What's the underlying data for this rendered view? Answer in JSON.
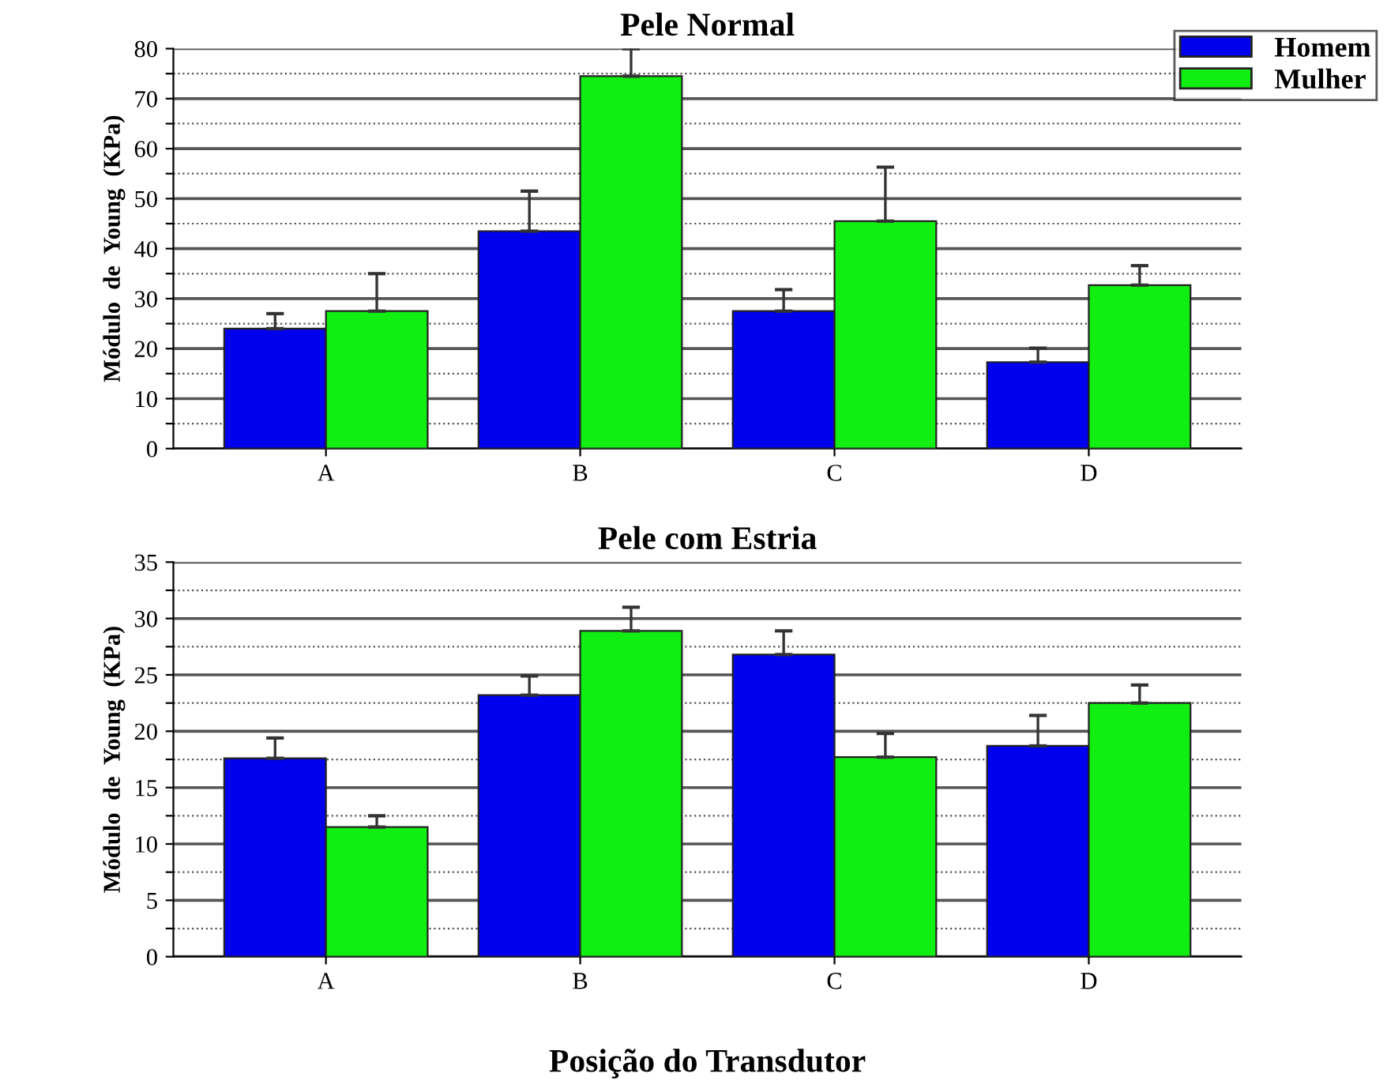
{
  "chart_data": [
    {
      "type": "bar",
      "title": "Pele Normal",
      "ylabel": "Módulo  de  Young  (KPa)",
      "categories": [
        "A",
        "B",
        "C",
        "D"
      ],
      "series": [
        {
          "name": "Homem",
          "color": "#0000ee",
          "values": [
            24,
            43.5,
            27.5,
            17.3
          ],
          "errors": [
            [
              24,
              27
            ],
            [
              43.5,
              51.5
            ],
            [
              27.5,
              31.8
            ],
            [
              17.3,
              20.1
            ]
          ]
        },
        {
          "name": "Mulher",
          "color": "#11ee11",
          "values": [
            27.5,
            74.5,
            45.5,
            32.7
          ],
          "errors": [
            [
              27.5,
              35
            ],
            [
              74.5,
              80
            ],
            [
              45.5,
              56.3
            ],
            [
              32.7,
              36.6
            ]
          ]
        }
      ],
      "ylim": [
        0,
        80
      ],
      "yticks": [
        0,
        {
          "value": 5,
          "label": null
        },
        10,
        {
          "value": 15,
          "label": null
        },
        20,
        {
          "value": 25,
          "label": null
        },
        30,
        {
          "value": 35,
          "label": null
        },
        40,
        {
          "value": 45,
          "label": null
        },
        50,
        {
          "value": 55,
          "label": null
        },
        60,
        {
          "value": 65,
          "label": null
        },
        70,
        {
          "value": 75,
          "label": null
        },
        80
      ],
      "grid": "y",
      "legend": "top right"
    },
    {
      "type": "bar",
      "title": "Pele com Estria",
      "ylabel": "Módulo  de  Young  (KPa)",
      "xlabel": "Posição do Transdutor",
      "categories": [
        "A",
        "B",
        "C",
        "D"
      ],
      "series": [
        {
          "color": "#0000ee",
          "values": [
            17.6,
            23.2,
            26.8,
            18.7
          ],
          "errors": [
            [
              17.6,
              19.4
            ],
            [
              23.2,
              24.9
            ],
            [
              26.8,
              28.9
            ],
            [
              18.7,
              21.4
            ]
          ]
        },
        {
          "color": "#11ee11",
          "values": [
            11.5,
            28.9,
            17.7,
            22.5
          ],
          "errors": [
            [
              11.5,
              12.5
            ],
            [
              28.9,
              31
            ],
            [
              17.7,
              19.8
            ],
            [
              22.5,
              24.1
            ]
          ]
        }
      ],
      "ylim": [
        0,
        35
      ],
      "yticks": [
        0,
        {
          "value": 2.5,
          "label": null
        },
        5,
        {
          "value": 7.5,
          "label": null
        },
        10,
        {
          "value": 12.5,
          "label": null
        },
        15,
        {
          "value": 17.5,
          "label": null
        },
        20,
        {
          "value": 22.5,
          "label": null
        },
        25,
        {
          "value": 27.5,
          "label": null
        },
        30,
        {
          "value": 32.5,
          "label": null
        },
        35
      ],
      "grid": "y",
      "legend": false
    }
  ]
}
